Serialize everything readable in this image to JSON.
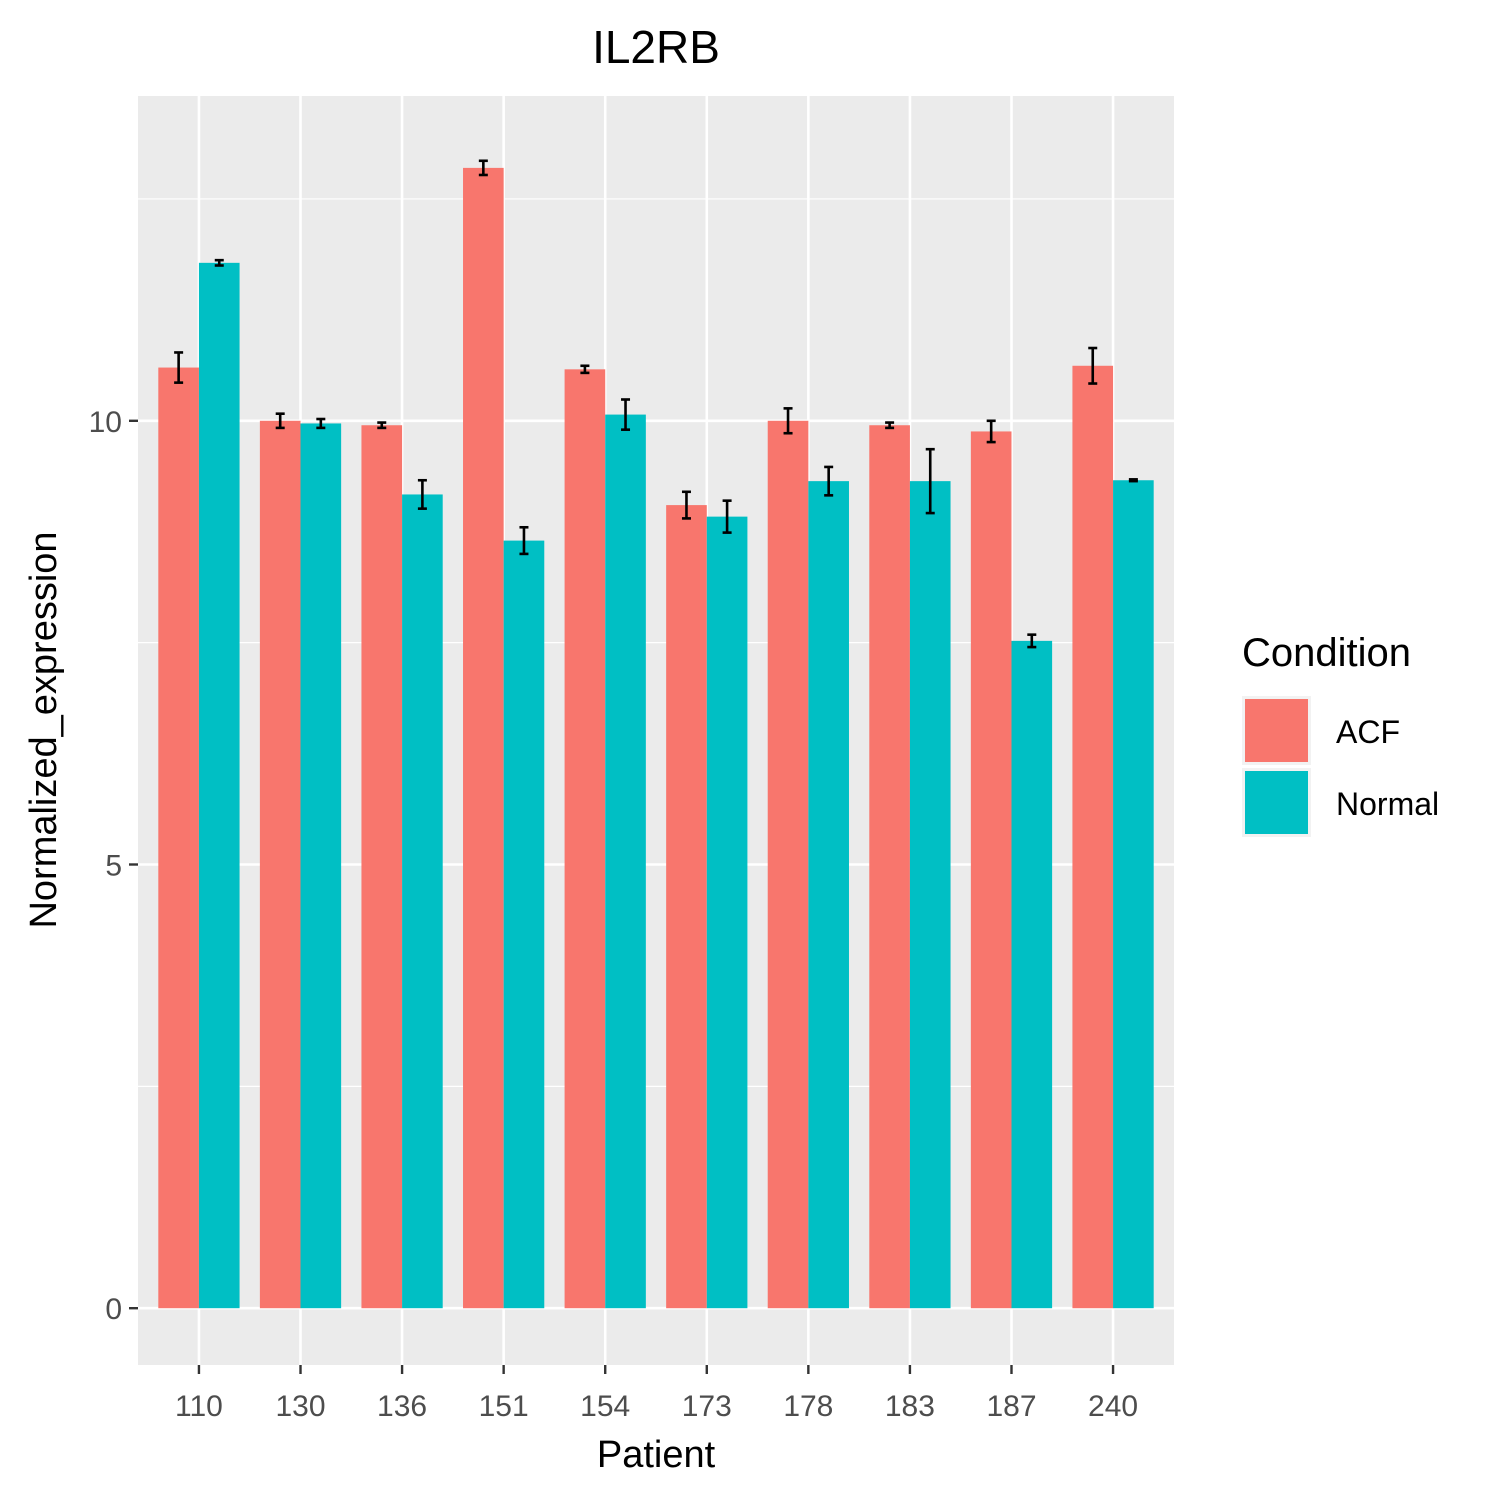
{
  "chart_data": {
    "type": "bar",
    "title": "IL2RB",
    "xlabel": "Patient",
    "ylabel": "Normalized_expression",
    "categories": [
      "110",
      "130",
      "136",
      "151",
      "154",
      "173",
      "178",
      "183",
      "187",
      "240"
    ],
    "series": [
      {
        "name": "ACF",
        "color": "#F8766D",
        "values": [
          10.6,
          10.0,
          9.95,
          12.85,
          10.58,
          9.05,
          10.0,
          9.95,
          9.88,
          10.62
        ],
        "error": [
          0.17,
          0.08,
          0.03,
          0.08,
          0.04,
          0.15,
          0.14,
          0.03,
          0.12,
          0.2
        ]
      },
      {
        "name": "Normal",
        "color": "#00BFC4",
        "values": [
          11.78,
          9.97,
          9.17,
          8.65,
          10.07,
          8.92,
          9.32,
          9.32,
          7.52,
          9.33
        ],
        "error": [
          0.03,
          0.05,
          0.16,
          0.15,
          0.17,
          0.18,
          0.16,
          0.36,
          0.07,
          0.01
        ]
      }
    ],
    "yticks": [
      0,
      5,
      10
    ],
    "ylim": [
      -0.64,
      13.66
    ],
    "grid": true,
    "legend": {
      "title": "Condition",
      "position": "right"
    }
  }
}
